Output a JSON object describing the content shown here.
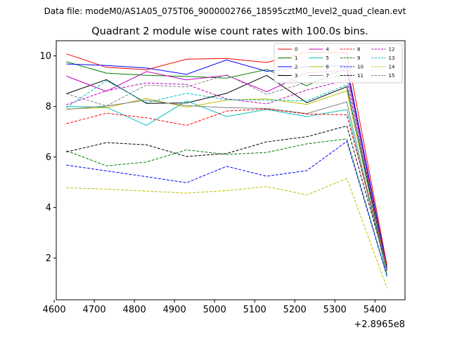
{
  "chart_data": {
    "type": "line",
    "suptitle": "Data file: modeM0/AS1A05_075T06_9000002766_18595cztM0_level2_quad_clean.evt",
    "title": "Quadrant 2 module wise count rates with 100.0s bins.",
    "xlabel": "",
    "ylabel": "",
    "x_offset_label": "+2.8965e8",
    "x": [
      4630,
      4730,
      4830,
      4930,
      5030,
      5130,
      5230,
      5330,
      5430
    ],
    "xlim": [
      4605,
      5475
    ],
    "ylim": [
      0.35,
      10.6
    ],
    "xticks": [
      4600,
      4700,
      4800,
      4900,
      5000,
      5100,
      5200,
      5300,
      5400
    ],
    "yticks": [
      2,
      4,
      6,
      8,
      10
    ],
    "grid": false,
    "legend_position": "top-right",
    "legend_columns": 4,
    "series": [
      {
        "name": "0",
        "color": "#ff0000",
        "dashed": false,
        "values": [
          10.08,
          9.55,
          9.45,
          9.87,
          9.9,
          9.74,
          10.15,
          10.12,
          1.72
        ]
      },
      {
        "name": "1",
        "color": "#008000",
        "dashed": false,
        "values": [
          9.77,
          9.32,
          9.23,
          9.19,
          9.12,
          9.46,
          8.82,
          9.55,
          1.65
        ]
      },
      {
        "name": "2",
        "color": "#0000ff",
        "dashed": false,
        "values": [
          9.68,
          9.62,
          9.52,
          9.27,
          9.84,
          9.39,
          9.57,
          9.62,
          1.6
        ]
      },
      {
        "name": "3",
        "color": "#000000",
        "dashed": false,
        "values": [
          8.5,
          9.06,
          8.12,
          8.14,
          8.52,
          9.23,
          8.15,
          8.78,
          1.55
        ]
      },
      {
        "name": "4",
        "color": "#bf00bf",
        "dashed": false,
        "values": [
          9.2,
          8.6,
          9.38,
          9.05,
          9.23,
          8.58,
          9.33,
          9.43,
          1.5
        ]
      },
      {
        "name": "5",
        "color": "#00bfbf",
        "dashed": false,
        "values": [
          8.0,
          7.97,
          7.25,
          8.22,
          7.6,
          7.88,
          7.6,
          7.88,
          1.45
        ]
      },
      {
        "name": "6",
        "color": "#bfbf00",
        "dashed": false,
        "values": [
          7.9,
          7.95,
          8.32,
          7.97,
          8.25,
          8.3,
          8.08,
          8.62,
          1.4
        ]
      },
      {
        "name": "7",
        "color": "#808080",
        "dashed": false,
        "values": [
          7.88,
          8.02,
          8.25,
          8.03,
          7.95,
          7.92,
          7.72,
          8.18,
          1.35
        ]
      },
      {
        "name": "8",
        "color": "#ff0000",
        "dashed": true,
        "values": [
          7.32,
          7.73,
          7.55,
          7.25,
          7.82,
          7.9,
          7.7,
          7.67,
          1.72
        ]
      },
      {
        "name": "9",
        "color": "#008000",
        "dashed": true,
        "values": [
          6.25,
          5.65,
          5.8,
          6.28,
          6.1,
          6.18,
          6.52,
          6.72,
          1.3
        ]
      },
      {
        "name": "10",
        "color": "#0000ff",
        "dashed": true,
        "values": [
          5.68,
          5.45,
          5.22,
          4.98,
          5.63,
          5.24,
          5.46,
          6.62,
          1.28
        ]
      },
      {
        "name": "11",
        "color": "#000000",
        "dashed": true,
        "values": [
          6.2,
          6.57,
          6.48,
          6.02,
          6.14,
          6.6,
          6.8,
          7.23,
          1.62
        ]
      },
      {
        "name": "12",
        "color": "#bf00bf",
        "dashed": true,
        "values": [
          8.07,
          8.62,
          8.93,
          8.87,
          8.3,
          8.1,
          8.65,
          9.05,
          1.58
        ]
      },
      {
        "name": "13",
        "color": "#00bfbf",
        "dashed": true,
        "values": [
          7.95,
          9.02,
          8.15,
          8.52,
          8.27,
          8.25,
          8.22,
          8.85,
          1.25
        ]
      },
      {
        "name": "14",
        "color": "#bfbf00",
        "dashed": true,
        "values": [
          4.78,
          4.73,
          4.65,
          4.57,
          4.67,
          4.83,
          4.5,
          5.15,
          0.82
        ]
      },
      {
        "name": "15",
        "color": "#808080",
        "dashed": true,
        "values": [
          8.5,
          8.02,
          8.85,
          8.77,
          9.25,
          8.48,
          8.95,
          9.25,
          1.48
        ]
      }
    ]
  }
}
